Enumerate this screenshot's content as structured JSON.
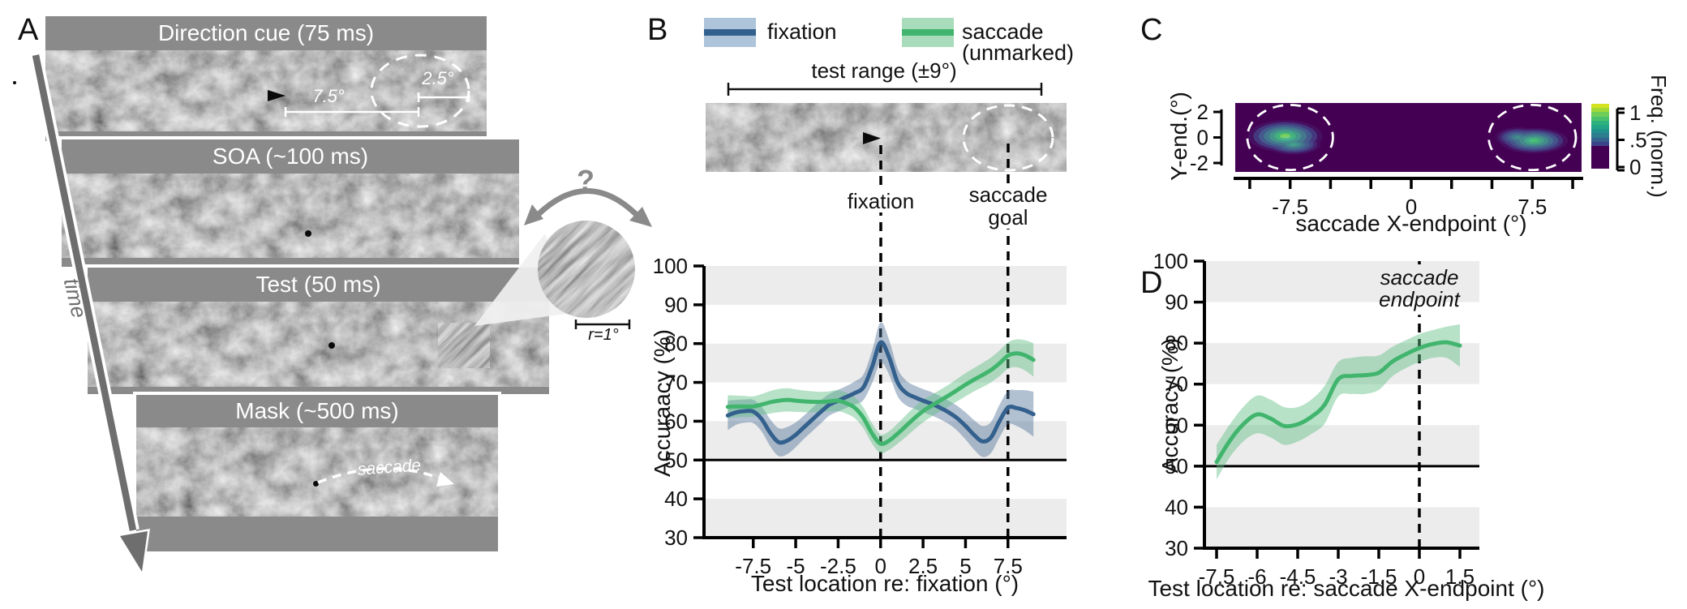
{
  "figure": {
    "panel_a": {
      "label": "A",
      "frames": [
        {
          "title": "Direction cue (75 ms)"
        },
        {
          "title": "SOA (~100 ms)"
        },
        {
          "title": "Test (50 ms)"
        },
        {
          "title": "Mask (~500 ms)"
        }
      ],
      "distance_label": "7.5°",
      "cue_size_label": "2.5°",
      "time_label": "time",
      "saccade_label": "saccade",
      "question_mark": "?",
      "inset_scale_label": "r=1°"
    },
    "panel_b": {
      "label": "B",
      "legend": [
        {
          "label": "fixation"
        },
        {
          "label_line1": "saccade",
          "label_line2": "(unmarked)"
        }
      ],
      "test_range_label": "test range (±9°)",
      "fixation_label": "fixation",
      "saccade_goal_line1": "saccade",
      "saccade_goal_line2": "goal",
      "xlabel": "Test location re: fixation (°)",
      "ylabel": "Accuraacy (%)"
    },
    "panel_c": {
      "label": "C",
      "xlabel": "saccade X-endpoint (°)",
      "ylabel": "Y-end.(°)",
      "colorbar_label": "Freq. (norm.)"
    },
    "panel_d": {
      "label": "D",
      "xlabel": "Test location re: saccade X-endpoint (°)",
      "ylabel": "Accuracy (%)",
      "endpoint_line1": "saccade",
      "endpoint_line2": "endpoint"
    }
  },
  "colors": {
    "fixation_line": "#33608d",
    "fixation_band": "rgba(84,118,155,0.45)",
    "fixation_swatch": "#aec4da",
    "saccade_line": "#41b56d",
    "saccade_band": "rgba(96,191,133,0.45)",
    "saccade_swatch": "#a9dcba",
    "plot_band": "#ececec",
    "frame_gray": "#8a8a8a",
    "heatmap_background": "#440154"
  },
  "chart_data": [
    {
      "id": "B",
      "type": "line",
      "xlabel": "Test location re: fixation (°)",
      "ylabel": "Accuraacy (%)",
      "xlim": [
        -10.4,
        10.95
      ],
      "ylim": [
        30,
        100
      ],
      "xticks": [
        -7.5,
        -5,
        -2.5,
        0,
        2.5,
        5,
        7.5
      ],
      "yticks": [
        30,
        40,
        50,
        60,
        70,
        80,
        90,
        100
      ],
      "bands": [
        [
          30,
          40
        ],
        [
          50,
          60
        ],
        [
          70,
          80
        ],
        [
          90,
          100
        ]
      ],
      "band_fill": "#ececec",
      "chance_level": 50,
      "grid": false,
      "legend_position": "top",
      "vlines": [
        {
          "x": 0,
          "label": "fixation",
          "segments": [
            [
              30,
              100
            ]
          ]
        },
        {
          "x": 7.5,
          "label": "saccade goal",
          "segments": [
            [
              30,
              100
            ]
          ]
        }
      ],
      "x": [
        -9,
        -8.5,
        -8,
        -7.5,
        -7,
        -6.5,
        -6,
        -5.5,
        -5,
        -4.5,
        -4,
        -3.5,
        -3,
        -2.5,
        -2,
        -1.5,
        -1,
        -0.5,
        0,
        0.5,
        1,
        1.5,
        2,
        2.5,
        3,
        3.5,
        4,
        4.5,
        5,
        5.5,
        6,
        6.5,
        7,
        7.5,
        8,
        8.5,
        9
      ],
      "series": [
        {
          "name": "fixation",
          "color": "#33608d",
          "band_color": "rgba(84,118,155,0.45)",
          "values": [
            61.5,
            62.3,
            62.6,
            62.5,
            60.5,
            57,
            54.6,
            55,
            56.5,
            58.5,
            60.5,
            62.5,
            64.3,
            65.3,
            66.3,
            67.3,
            68.8,
            74,
            80.3,
            76.5,
            70,
            67.3,
            66.2,
            65.3,
            64.5,
            63.5,
            62.3,
            60.8,
            58.8,
            56.5,
            54.8,
            55.8,
            60,
            63.5,
            63.4,
            62.8,
            61.8
          ],
          "band_halfwidth": [
            3.8,
            3.2,
            3,
            3,
            3.2,
            3.5,
            3.6,
            3.5,
            3.2,
            3,
            3,
            3,
            2.8,
            2.8,
            2.8,
            3,
            3.3,
            4.2,
            5.2,
            4.5,
            3.6,
            3.2,
            3,
            3,
            3,
            3,
            3,
            3.2,
            3.5,
            3.8,
            4,
            4,
            4.2,
            4.3,
            4.6,
            5.2,
            5.8
          ]
        },
        {
          "name": "saccade (unmarked)",
          "color": "#41b56d",
          "band_color": "rgba(96,191,133,0.45)",
          "values": [
            63.7,
            63.8,
            63.8,
            63.8,
            64.3,
            64.9,
            65.3,
            65.5,
            65.3,
            65.1,
            65,
            65,
            65.1,
            65.3,
            64.6,
            63.4,
            60.8,
            56.8,
            54.2,
            55,
            56.8,
            58.8,
            60.8,
            62.6,
            64,
            65.3,
            66.6,
            68,
            69.4,
            70.7,
            71.9,
            73.2,
            74.9,
            76.9,
            77.5,
            77,
            75.8
          ],
          "band_halfwidth": [
            3,
            2.8,
            2.7,
            2.6,
            2.7,
            2.9,
            3,
            3,
            2.9,
            2.8,
            2.7,
            2.6,
            2.6,
            2.7,
            2.7,
            2.7,
            2.7,
            2.6,
            2.4,
            2.4,
            2.6,
            2.8,
            2.9,
            2.9,
            2.8,
            2.8,
            2.8,
            2.9,
            3,
            3,
            3.1,
            3.2,
            3.3,
            3.4,
            3.6,
            3.9,
            4.3
          ]
        }
      ]
    },
    {
      "id": "C",
      "type": "heatmap",
      "xlabel": "saccade X-endpoint (°)",
      "ylabel": "Y-end.(°)",
      "xlim": [
        -10.9,
        10.55
      ],
      "ylim": [
        -2.7,
        2.7
      ],
      "xticks_all": [
        -10,
        -7.5,
        -5,
        -2.5,
        0,
        2.5,
        5,
        7.5,
        10
      ],
      "xticks_labeled": [
        -7.5,
        0,
        7.5
      ],
      "yticks": [
        2,
        0,
        -2
      ],
      "colormap": "viridis",
      "background_value": 0,
      "blobs": [
        {
          "cx": -7.8,
          "cy": 0.1,
          "rx": 2.3,
          "ry": 1.25,
          "peak": 1.0
        },
        {
          "cx": -7.3,
          "cy": -0.55,
          "rx": 1.7,
          "ry": 0.8,
          "peak": 0.75
        },
        {
          "cx": 7.6,
          "cy": -0.25,
          "rx": 2.1,
          "ry": 1.0,
          "peak": 0.92
        },
        {
          "cx": 6.6,
          "cy": 0.0,
          "rx": 1.4,
          "ry": 0.8,
          "peak": 0.65
        }
      ],
      "saccade_target_circles": [
        {
          "cx": -7.5,
          "cy": 0,
          "rx": 2.65,
          "ry": 2.55
        },
        {
          "cx": 7.5,
          "cy": 0,
          "rx": 2.7,
          "ry": 2.55
        }
      ],
      "colorbar": {
        "label": "Freq. (norm.)",
        "ticks": [
          1,
          0.5,
          0
        ],
        "tick_labels": [
          "1",
          ".5",
          "0"
        ],
        "colors_top_to_bottom": [
          "#d4e21f",
          "#a0da39",
          "#6ece58",
          "#4ac16d",
          "#2db27d",
          "#21a585",
          "#21918c",
          "#2c7e8e",
          "#34618d",
          "#3d4389",
          "#440154"
        ]
      }
    },
    {
      "id": "D",
      "type": "line",
      "xlabel": "Test location re: saccade X-endpoint (°)",
      "ylabel": "Accuracy (%)",
      "xlim": [
        -7.95,
        2.22
      ],
      "ylim": [
        30,
        100
      ],
      "xticks": [
        -7.5,
        -6,
        -4.5,
        -3,
        -1.5,
        0,
        1.5
      ],
      "yticks": [
        30,
        40,
        50,
        60,
        70,
        80,
        90,
        100
      ],
      "bands": [
        [
          30,
          40
        ],
        [
          50,
          60
        ],
        [
          70,
          80
        ],
        [
          90,
          100
        ]
      ],
      "band_fill": "#ececec",
      "chance_level": 50,
      "grid": false,
      "vlines": [
        {
          "x": 0,
          "label": "saccade endpoint",
          "segments": [
            [
              30,
              86.9
            ],
            [
              99.2,
              100
            ]
          ]
        }
      ],
      "x": [
        -7.5,
        -7,
        -6.5,
        -6,
        -5.5,
        -5,
        -4.5,
        -4,
        -3.5,
        -3,
        -2.5,
        -2,
        -1.5,
        -1,
        -0.5,
        0,
        0.5,
        1,
        1.5
      ],
      "series": [
        {
          "name": "saccade (unmarked)",
          "color": "#41b56d",
          "band_color": "rgba(96,191,133,0.45)",
          "values": [
            51,
            56.3,
            60.3,
            62.6,
            61.6,
            59.8,
            60.2,
            62,
            65,
            71.2,
            72,
            72.2,
            72.8,
            75.5,
            77.3,
            78.8,
            79.8,
            80.2,
            79.4
          ],
          "band_halfwidth": [
            4.2,
            4,
            4.2,
            4.6,
            4.6,
            4.6,
            4.2,
            4.2,
            4.6,
            4.2,
            4.4,
            4.6,
            4.2,
            3.6,
            3.4,
            3.4,
            3.4,
            3.8,
            5.2
          ]
        }
      ]
    }
  ]
}
